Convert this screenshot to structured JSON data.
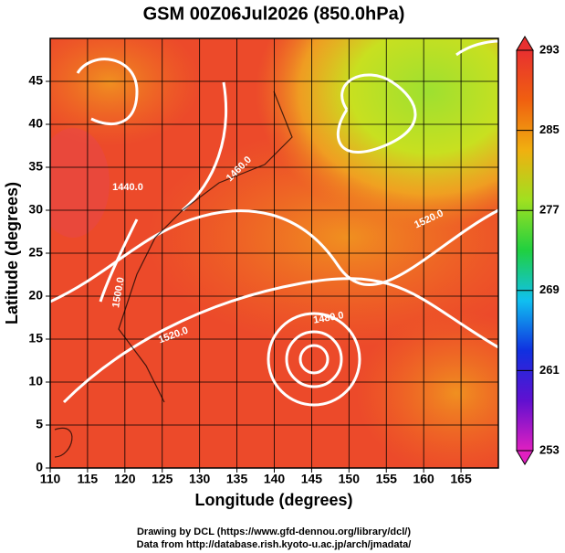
{
  "chart_data": {
    "type": "contour-map",
    "title": "GSM 00Z06Jul2026 (850.0hPa)",
    "x_label": "Longitude (degrees)",
    "y_label": "Latitude  (degrees)",
    "xlim": [
      110,
      170
    ],
    "xticks": [
      110,
      115,
      120,
      125,
      130,
      135,
      140,
      145,
      150,
      155,
      160,
      165
    ],
    "ylim": [
      0,
      50
    ],
    "yticks": [
      0,
      5,
      10,
      15,
      20,
      25,
      30,
      35,
      40,
      45
    ],
    "grid": true,
    "contour_labels": [
      "1440.0",
      "1460.0",
      "1500.0",
      "1520.0",
      "1520.0",
      "1480.0"
    ],
    "colorbar": {
      "lim": [
        253,
        293
      ],
      "ticks": [
        253,
        261,
        269,
        277,
        285,
        293
      ],
      "colors": [
        "#e020c0",
        "#6010d0",
        "#1030e0",
        "#10c0f0",
        "#20d040",
        "#a0e020",
        "#f0b010",
        "#f06010",
        "#e83030"
      ]
    },
    "footer": [
      "Drawing by DCL (https://www.gfd-dennou.org/library/dcl/)",
      "Data from http://database.rish.kyoto-u.ac.jp/arch/jmadata/"
    ]
  }
}
